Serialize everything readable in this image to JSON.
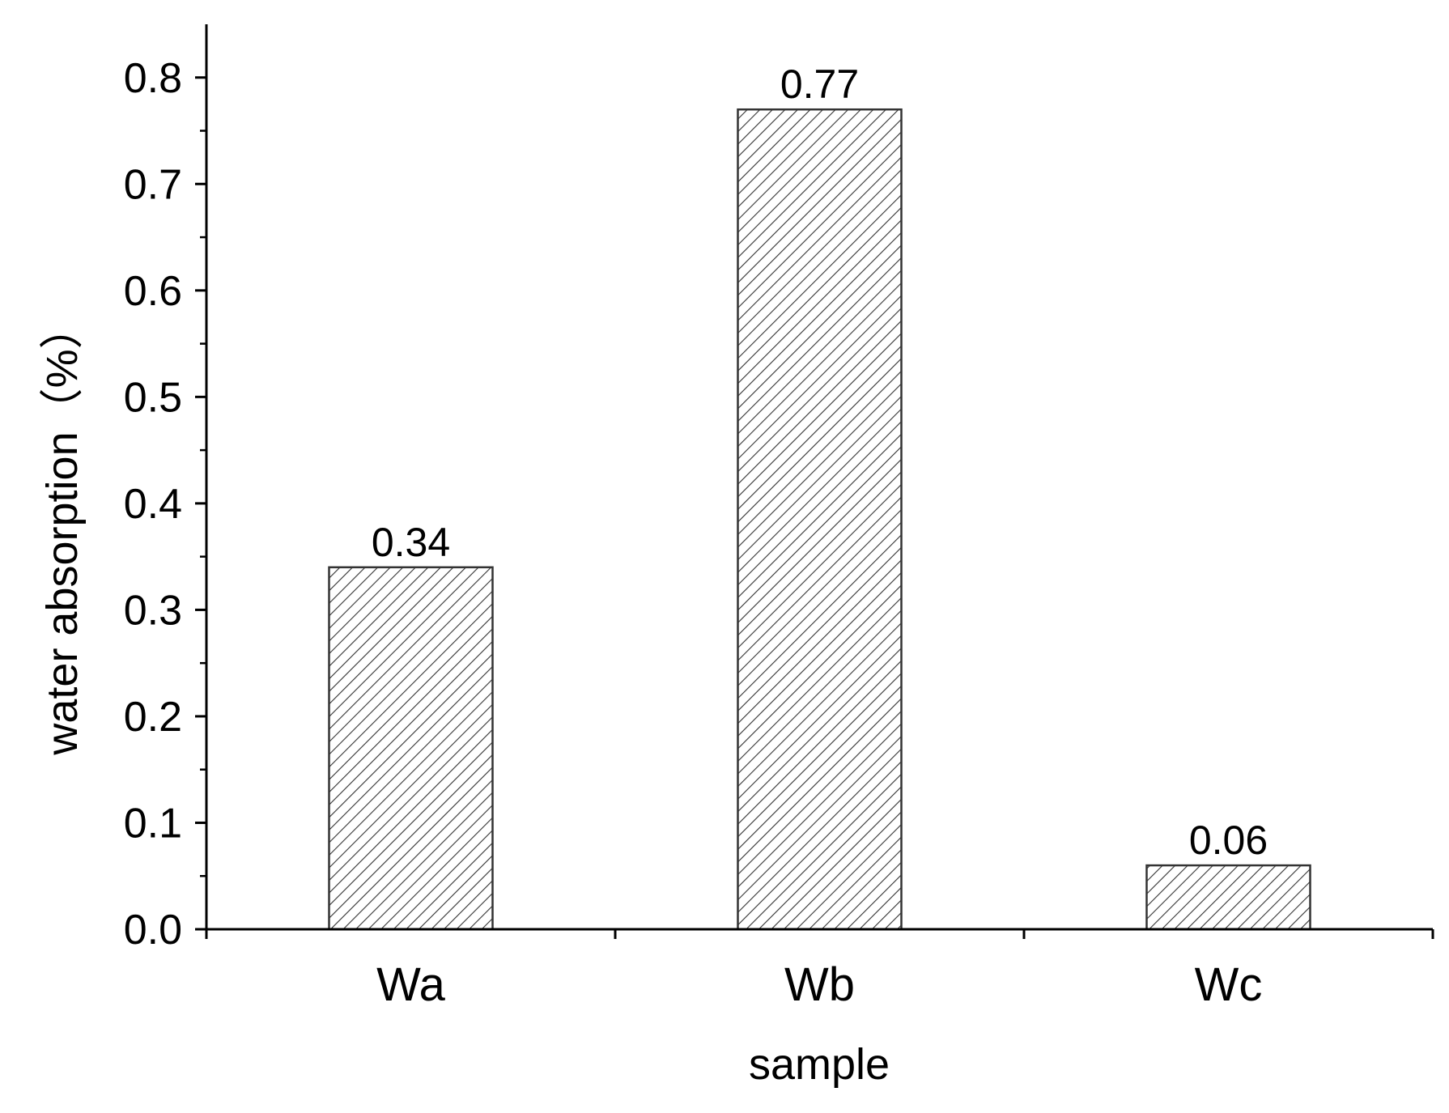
{
  "chart_data": {
    "type": "bar",
    "title": "",
    "xlabel": "sample",
    "ylabel": "water absorption（%）",
    "categories": [
      "Wa",
      "Wb",
      "Wc"
    ],
    "values": [
      0.34,
      0.77,
      0.06
    ],
    "value_labels": [
      "0.34",
      "0.77",
      "0.06"
    ],
    "ylim": [
      0,
      0.85
    ],
    "yticks": [
      0.0,
      0.1,
      0.2,
      0.3,
      0.4,
      0.5,
      0.6,
      0.7,
      0.8
    ],
    "ytick_labels": [
      "0.0",
      "0.1",
      "0.2",
      "0.3",
      "0.4",
      "0.5",
      "0.6",
      "0.7",
      "0.8"
    ],
    "grid": false,
    "legend": "none",
    "bar_fill": "hatched",
    "colors": {
      "axis": "#000000",
      "bar_edge": "#333333",
      "hatch": "#333333",
      "background": "#ffffff"
    }
  }
}
